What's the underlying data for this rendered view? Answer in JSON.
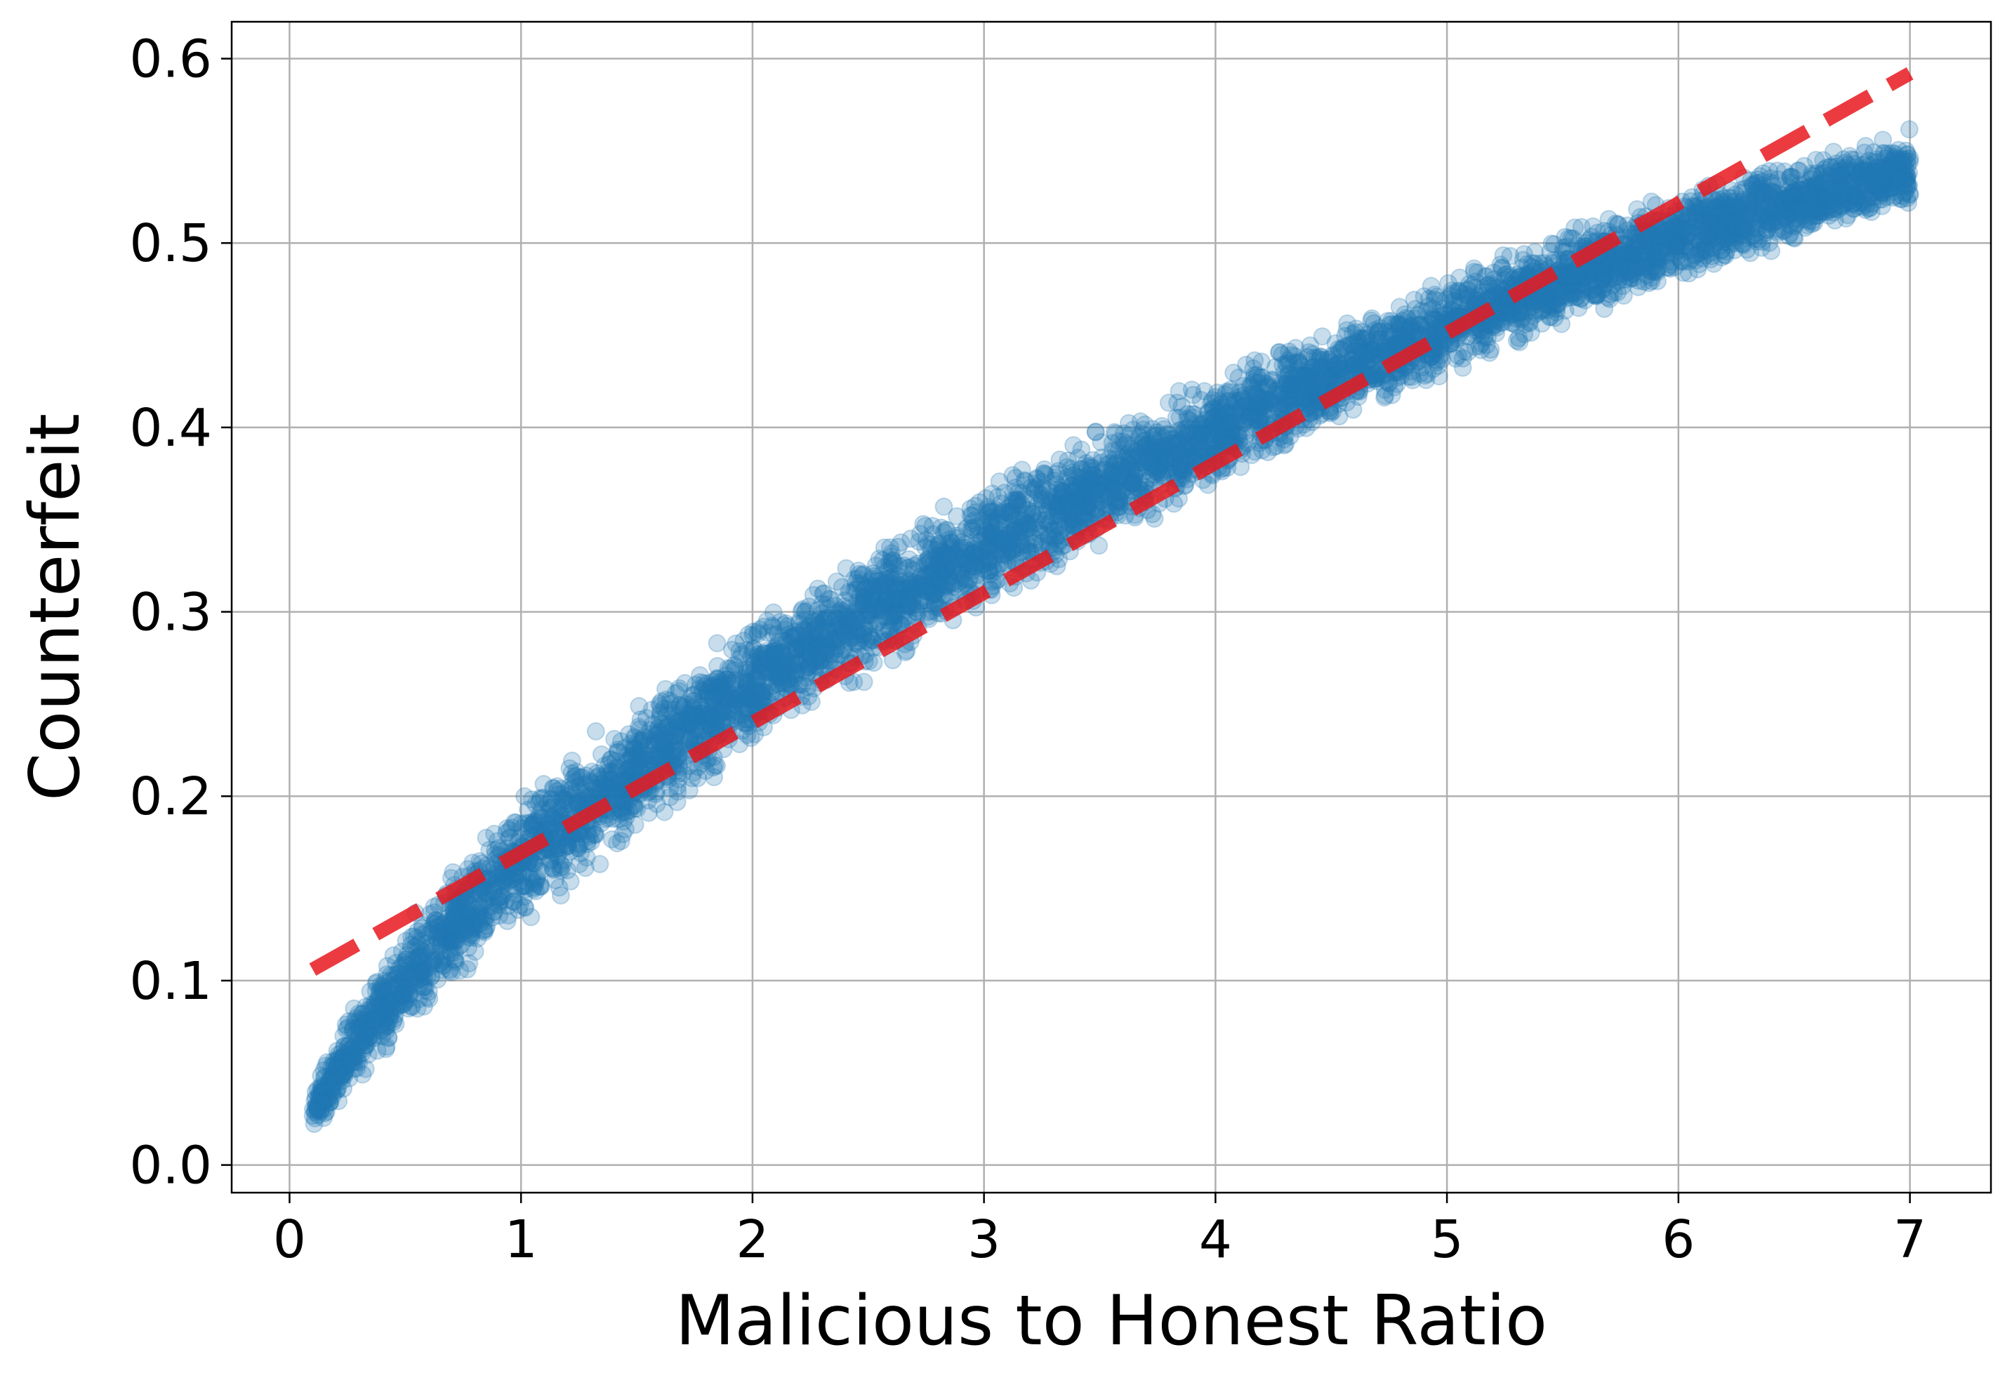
{
  "chart_data": {
    "type": "scatter",
    "title": "",
    "xlabel": "Malicious to Honest Ratio",
    "ylabel": "Counterfeit",
    "xlim": [
      -0.25,
      7.35
    ],
    "ylim": [
      -0.015,
      0.62
    ],
    "xticks": [
      0,
      1,
      2,
      3,
      4,
      5,
      6,
      7
    ],
    "yticks": [
      0.0,
      0.1,
      0.2,
      0.3,
      0.4,
      0.5,
      0.6
    ],
    "xtick_labels": [
      "0",
      "1",
      "2",
      "3",
      "4",
      "5",
      "6",
      "7"
    ],
    "ytick_labels": [
      "0.0",
      "0.1",
      "0.2",
      "0.3",
      "0.4",
      "0.5",
      "0.6"
    ],
    "grid": true,
    "legend": "none",
    "series": [
      {
        "kind": "scatter",
        "color": "#1f77b4",
        "opacity": 0.25,
        "x_range": [
          0.1,
          7.0
        ],
        "band_center": [
          {
            "x": 0.1,
            "y": 0.028
          },
          {
            "x": 0.25,
            "y": 0.06
          },
          {
            "x": 0.5,
            "y": 0.1
          },
          {
            "x": 0.75,
            "y": 0.135
          },
          {
            "x": 1.0,
            "y": 0.165
          },
          {
            "x": 1.5,
            "y": 0.215
          },
          {
            "x": 2.0,
            "y": 0.26
          },
          {
            "x": 2.5,
            "y": 0.3
          },
          {
            "x": 3.0,
            "y": 0.335
          },
          {
            "x": 3.5,
            "y": 0.368
          },
          {
            "x": 4.0,
            "y": 0.398
          },
          {
            "x": 4.5,
            "y": 0.428
          },
          {
            "x": 5.0,
            "y": 0.455
          },
          {
            "x": 5.5,
            "y": 0.48
          },
          {
            "x": 6.0,
            "y": 0.503
          },
          {
            "x": 6.5,
            "y": 0.522
          },
          {
            "x": 7.0,
            "y": 0.54
          }
        ],
        "band_halfwidth": [
          {
            "x": 0.1,
            "y": 0.014
          },
          {
            "x": 0.5,
            "y": 0.03
          },
          {
            "x": 1.0,
            "y": 0.035
          },
          {
            "x": 2.0,
            "y": 0.036
          },
          {
            "x": 3.0,
            "y": 0.033
          },
          {
            "x": 4.0,
            "y": 0.03
          },
          {
            "x": 5.0,
            "y": 0.027
          },
          {
            "x": 6.0,
            "y": 0.024
          },
          {
            "x": 7.0,
            "y": 0.022
          }
        ]
      },
      {
        "kind": "line",
        "style": "dashed",
        "color": "#e8191f",
        "opacity": 0.85,
        "x": [
          0.1,
          7.0
        ],
        "y": [
          0.106,
          0.592
        ]
      }
    ]
  }
}
